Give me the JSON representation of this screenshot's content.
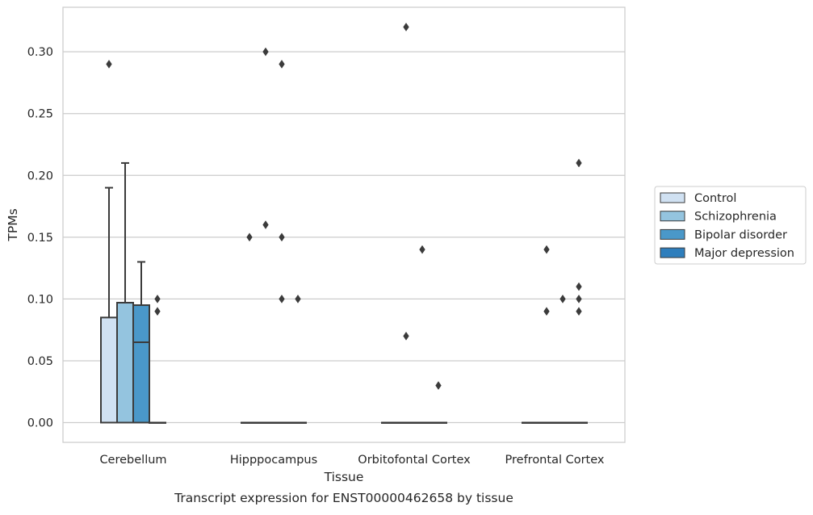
{
  "chart_data": {
    "type": "box",
    "title": "",
    "caption": "Transcript expression for ENST00000462658 by tissue",
    "xlabel": "Tissue",
    "ylabel": "TPMs",
    "ylim": [
      -0.016,
      0.336
    ],
    "yticks": [
      "0.00",
      "0.05",
      "0.10",
      "0.15",
      "0.20",
      "0.25",
      "0.30"
    ],
    "ytick_values": [
      0,
      0.05,
      0.1,
      0.15,
      0.2,
      0.25,
      0.3
    ],
    "grid": "horizontal",
    "legend_position": "right",
    "categories": [
      "Cerebellum",
      "Hipppocampus",
      "Orbitofontal Cortex",
      "Prefrontal Cortex"
    ],
    "series": [
      {
        "name": "Control",
        "color": "#d0e1f2",
        "boxes": [
          {
            "q1": 0,
            "median": 0,
            "q3": 0.085,
            "whisker_low": 0,
            "whisker_high": 0.19,
            "outliers": [
              0.29
            ]
          },
          {
            "q1": 0,
            "median": 0,
            "q3": 0,
            "whisker_low": 0,
            "whisker_high": 0,
            "outliers": [
              0.15
            ]
          },
          {
            "q1": 0,
            "median": 0,
            "q3": 0,
            "whisker_low": 0,
            "whisker_high": 0,
            "outliers": []
          },
          {
            "q1": 0,
            "median": 0,
            "q3": 0,
            "whisker_low": 0,
            "whisker_high": 0,
            "outliers": []
          }
        ]
      },
      {
        "name": "Schizophrenia",
        "color": "#94c4df",
        "boxes": [
          {
            "q1": 0,
            "median": 0,
            "q3": 0.097,
            "whisker_low": 0,
            "whisker_high": 0.21,
            "outliers": []
          },
          {
            "q1": 0,
            "median": 0,
            "q3": 0,
            "whisker_low": 0,
            "whisker_high": 0,
            "outliers": [
              0.16,
              0.3
            ]
          },
          {
            "q1": 0,
            "median": 0,
            "q3": 0,
            "whisker_low": 0,
            "whisker_high": 0,
            "outliers": [
              0.07,
              0.32
            ]
          },
          {
            "q1": 0,
            "median": 0,
            "q3": 0,
            "whisker_low": 0,
            "whisker_high": 0,
            "outliers": [
              0.09,
              0.14
            ]
          }
        ]
      },
      {
        "name": "Bipolar disorder",
        "color": "#4a98c9",
        "boxes": [
          {
            "q1": 0,
            "median": 0.065,
            "q3": 0.095,
            "whisker_low": 0,
            "whisker_high": 0.13,
            "outliers": []
          },
          {
            "q1": 0,
            "median": 0,
            "q3": 0,
            "whisker_low": 0,
            "whisker_high": 0,
            "outliers": [
              0.1,
              0.15,
              0.29
            ]
          },
          {
            "q1": 0,
            "median": 0,
            "q3": 0,
            "whisker_low": 0,
            "whisker_high": 0,
            "outliers": [
              0.14
            ]
          },
          {
            "q1": 0,
            "median": 0,
            "q3": 0,
            "whisker_low": 0,
            "whisker_high": 0,
            "outliers": [
              0.1
            ]
          }
        ]
      },
      {
        "name": "Major depression",
        "color": "#2e7ebc",
        "boxes": [
          {
            "q1": 0,
            "median": 0,
            "q3": 0,
            "whisker_low": 0,
            "whisker_high": 0,
            "outliers": [
              0.09,
              0.1
            ]
          },
          {
            "q1": 0,
            "median": 0,
            "q3": 0,
            "whisker_low": 0,
            "whisker_high": 0,
            "outliers": [
              0.1
            ]
          },
          {
            "q1": 0,
            "median": 0,
            "q3": 0,
            "whisker_low": 0,
            "whisker_high": 0,
            "outliers": [
              0.03
            ]
          },
          {
            "q1": 0,
            "median": 0,
            "q3": 0,
            "whisker_low": 0,
            "whisker_high": 0,
            "outliers": [
              0.1,
              0.11,
              0.09,
              0.21
            ]
          }
        ]
      }
    ]
  }
}
